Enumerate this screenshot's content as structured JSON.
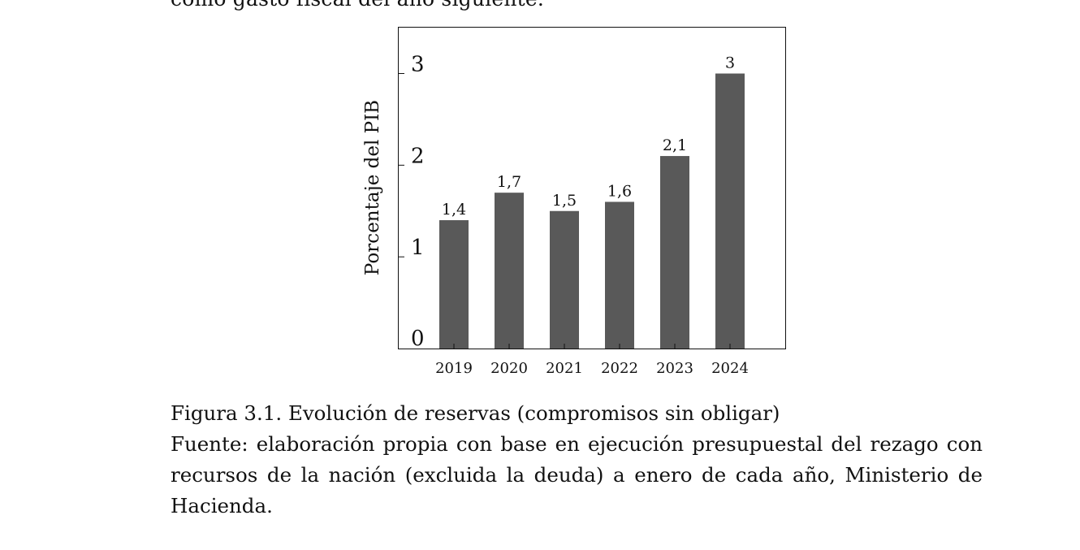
{
  "text_above": "como gasto fiscal del año siguiente.",
  "chart_data": {
    "type": "bar",
    "categories": [
      "2019",
      "2020",
      "2021",
      "2022",
      "2023",
      "2024"
    ],
    "values": [
      1.4,
      1.7,
      1.5,
      1.6,
      2.1,
      3.0
    ],
    "data_labels": [
      "1,4",
      "1,7",
      "1,5",
      "1,6",
      "2,1",
      "3"
    ],
    "title": "",
    "xlabel": "",
    "ylabel": "Porcentaje del PIB",
    "ylim": [
      0,
      3.5
    ],
    "yticks": [
      0,
      1,
      2,
      3
    ],
    "ytick_labels": [
      "0",
      "1",
      "2",
      "3"
    ],
    "grid": false,
    "bar_color": "#595959"
  },
  "caption": {
    "figure_title": "Figura 3.1. Evolución de reservas (compromisos sin obligar)",
    "source": "Fuente: elaboración propia con base en ejecución presupuestal del rezago con recursos de la nación (excluida la deuda) a enero de cada año, Ministerio de Hacienda."
  }
}
